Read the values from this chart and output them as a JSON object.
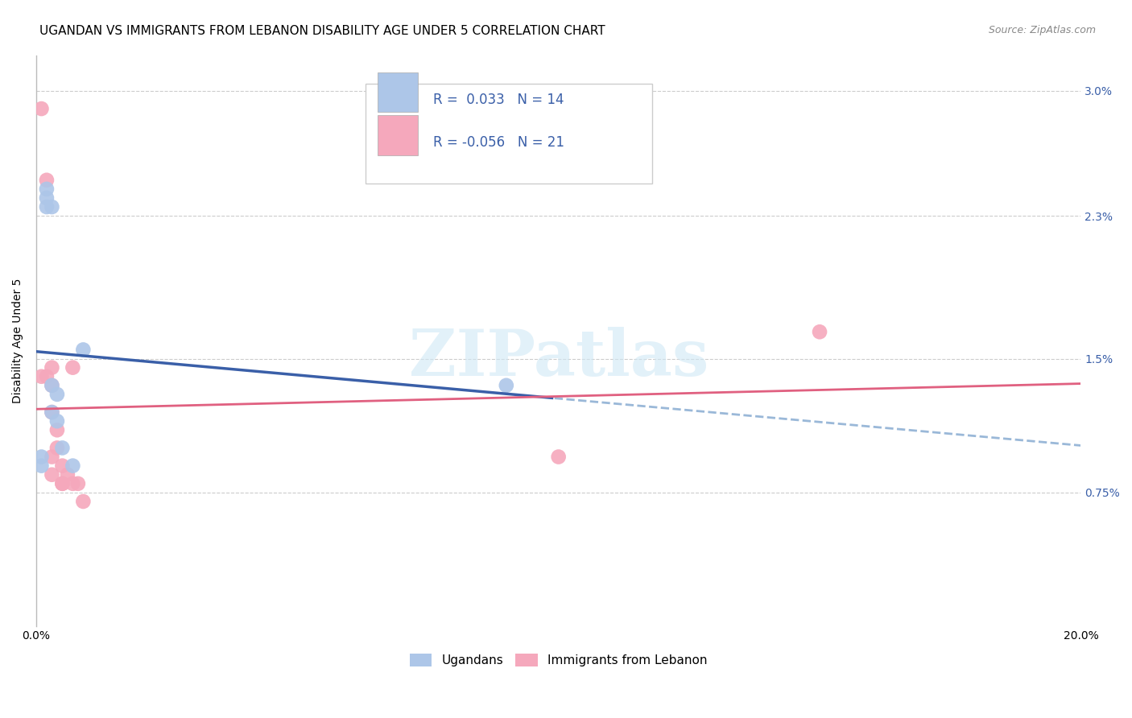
{
  "title": "UGANDAN VS IMMIGRANTS FROM LEBANON DISABILITY AGE UNDER 5 CORRELATION CHART",
  "source": "Source: ZipAtlas.com",
  "ylabel": "Disability Age Under 5",
  "xlim": [
    0.0,
    0.2
  ],
  "ylim": [
    0.0,
    0.032
  ],
  "yticks": [
    0.0,
    0.0075,
    0.015,
    0.023,
    0.03
  ],
  "ytick_labels": [
    "",
    "0.75%",
    "1.5%",
    "2.3%",
    "3.0%"
  ],
  "xticks": [
    0.0,
    0.04,
    0.08,
    0.12,
    0.16,
    0.2
  ],
  "xtick_labels": [
    "0.0%",
    "",
    "",
    "",
    "",
    "20.0%"
  ],
  "ugandan_x": [
    0.001,
    0.001,
    0.002,
    0.002,
    0.002,
    0.003,
    0.003,
    0.003,
    0.004,
    0.004,
    0.005,
    0.007,
    0.009,
    0.09
  ],
  "ugandan_y": [
    0.009,
    0.0095,
    0.0235,
    0.0245,
    0.024,
    0.0235,
    0.0135,
    0.012,
    0.013,
    0.0115,
    0.01,
    0.009,
    0.0155,
    0.0135
  ],
  "lebanon_x": [
    0.001,
    0.001,
    0.002,
    0.002,
    0.003,
    0.003,
    0.003,
    0.003,
    0.003,
    0.004,
    0.004,
    0.005,
    0.005,
    0.005,
    0.006,
    0.007,
    0.007,
    0.008,
    0.009,
    0.1,
    0.15
  ],
  "lebanon_y": [
    0.029,
    0.014,
    0.025,
    0.014,
    0.0145,
    0.0135,
    0.012,
    0.0095,
    0.0085,
    0.011,
    0.01,
    0.009,
    0.008,
    0.008,
    0.0085,
    0.0145,
    0.008,
    0.008,
    0.007,
    0.0095,
    0.0165
  ],
  "r_ugandan": 0.033,
  "n_ugandan": 14,
  "r_lebanon": -0.056,
  "n_lebanon": 21,
  "color_ugandan": "#adc6e8",
  "color_lebanon": "#f5a8bc",
  "line_color_ugandan_solid": "#3a5fa8",
  "line_color_ugandan_dash": "#9ab8d8",
  "line_color_lebanon": "#e06080",
  "watermark_text": "ZIPatlas",
  "watermark_color": "#d0e8f5",
  "title_fontsize": 11,
  "axis_label_fontsize": 10,
  "tick_fontsize": 10,
  "legend_fontsize": 12,
  "scatter_size": 180
}
